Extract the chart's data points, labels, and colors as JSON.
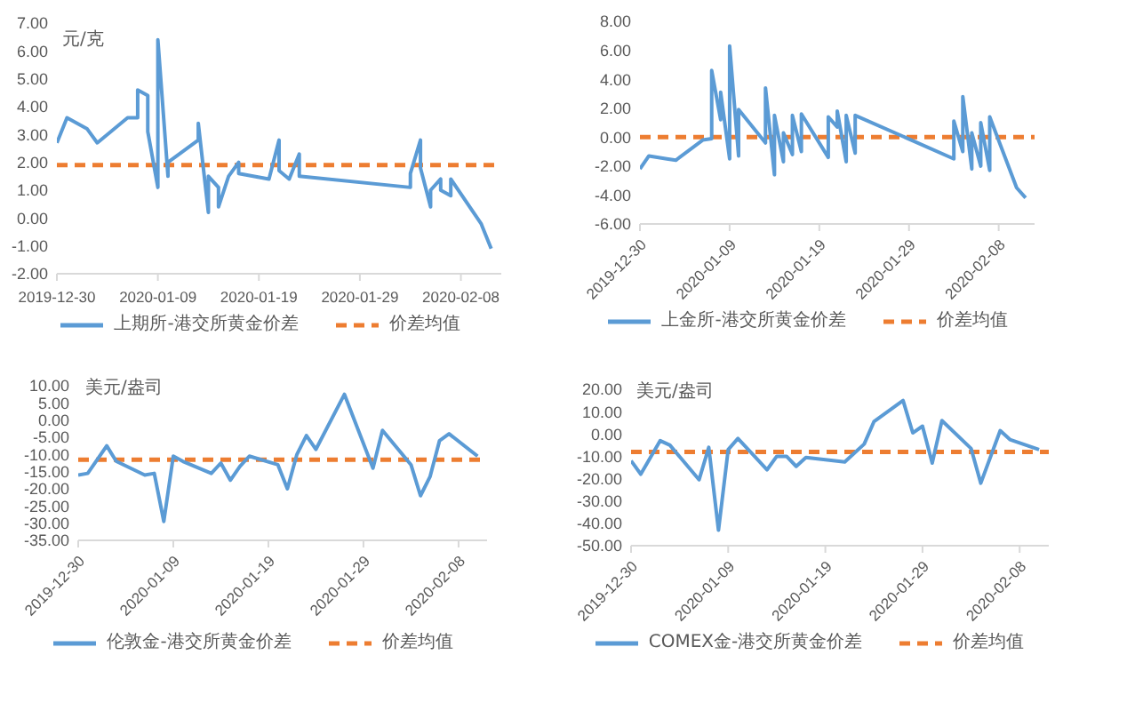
{
  "chart_data": [
    {
      "type": "line",
      "ylabel": "元/克",
      "xlim": [
        "2019-12-30",
        "2020-02-12"
      ],
      "xticks": [
        "2019-12-30",
        "2020-01-09",
        "2020-01-19",
        "2020-01-29",
        "2020-02-08"
      ],
      "ylim": [
        -2,
        7
      ],
      "yticks": [
        {
          "value": -2,
          "label": "-2.00"
        },
        {
          "value": -1,
          "label": "-1.00"
        },
        {
          "value": 0,
          "label": "0.00"
        },
        {
          "value": 1,
          "label": "1.00"
        },
        {
          "value": 2,
          "label": "2.00"
        },
        {
          "value": 3,
          "label": "3.00"
        },
        {
          "value": 4,
          "label": "4.00"
        },
        {
          "value": 5,
          "label": "5.00"
        },
        {
          "value": 6,
          "label": "6.00"
        },
        {
          "value": 7,
          "label": "7.00"
        }
      ],
      "legend": "bottom",
      "series": [
        {
          "name": "上期所-港交所黄金价差",
          "color": "#5b9bd5",
          "x": [
            "2019-12-30",
            "2019-12-31",
            "2020-01-02",
            "2020-01-03",
            "2020-01-06",
            "2020-01-07",
            "2020-01-07",
            "2020-01-08",
            "2020-01-08",
            "2020-01-09",
            "2020-01-09",
            "2020-01-10",
            "2020-01-10",
            "2020-01-13",
            "2020-01-13",
            "2020-01-14",
            "2020-01-14",
            "2020-01-15",
            "2020-01-15",
            "2020-01-16",
            "2020-01-17",
            "2020-01-17",
            "2020-01-20",
            "2020-01-21",
            "2020-01-21",
            "2020-01-22",
            "2020-01-23",
            "2020-01-23",
            "2020-02-03",
            "2020-02-03",
            "2020-02-04",
            "2020-02-04",
            "2020-02-05",
            "2020-02-05",
            "2020-02-06",
            "2020-02-06",
            "2020-02-07",
            "2020-02-07",
            "2020-02-10",
            "2020-02-11"
          ],
          "values": [
            2.7,
            3.6,
            3.2,
            2.7,
            3.6,
            3.6,
            4.6,
            4.4,
            3.1,
            1.1,
            6.4,
            1.5,
            2.0,
            2.8,
            3.4,
            0.2,
            1.5,
            1.1,
            0.4,
            1.5,
            2.0,
            1.6,
            1.4,
            2.8,
            1.7,
            1.4,
            2.3,
            1.5,
            1.1,
            1.6,
            2.8,
            1.8,
            0.4,
            1.0,
            1.4,
            1.0,
            0.8,
            1.4,
            -0.2,
            -1.1
          ]
        }
      ],
      "ref_lines": [
        {
          "axis": "y",
          "value": 1.9,
          "label": "价差均值",
          "color": "#ed7d31",
          "line_style": "dashed"
        }
      ]
    },
    {
      "type": "line",
      "xlim": [
        "2019-12-30",
        "2020-02-12"
      ],
      "xticks": [
        "2019-12-30",
        "2020-01-09",
        "2020-01-19",
        "2020-01-29",
        "2020-02-08"
      ],
      "ylim": [
        -6,
        8
      ],
      "yticks": [
        {
          "value": -6,
          "label": "-6.00"
        },
        {
          "value": -4,
          "label": "-4.00"
        },
        {
          "value": -2,
          "label": "-2.00"
        },
        {
          "value": 0,
          "label": "0.00"
        },
        {
          "value": 2,
          "label": "2.00"
        },
        {
          "value": 4,
          "label": "4.00"
        },
        {
          "value": 6,
          "label": "6.00"
        },
        {
          "value": 8,
          "label": "8.00"
        }
      ],
      "legend": "bottom",
      "series": [
        {
          "name": "上金所-港交所黄金价差",
          "color": "#5b9bd5",
          "x": [
            "2019-12-30",
            "2019-12-31",
            "2020-01-02",
            "2020-01-03",
            "2020-01-06",
            "2020-01-07",
            "2020-01-07",
            "2020-01-08",
            "2020-01-08",
            "2020-01-09",
            "2020-01-09",
            "2020-01-10",
            "2020-01-10",
            "2020-01-13",
            "2020-01-13",
            "2020-01-14",
            "2020-01-14",
            "2020-01-15",
            "2020-01-15",
            "2020-01-16",
            "2020-01-16",
            "2020-01-17",
            "2020-01-17",
            "2020-01-20",
            "2020-01-20",
            "2020-01-21",
            "2020-01-21",
            "2020-01-22",
            "2020-01-22",
            "2020-01-23",
            "2020-01-23",
            "2020-02-03",
            "2020-02-03",
            "2020-02-04",
            "2020-02-04",
            "2020-02-05",
            "2020-02-05",
            "2020-02-06",
            "2020-02-06",
            "2020-02-07",
            "2020-02-07",
            "2020-02-10",
            "2020-02-11"
          ],
          "values": [
            -2.2,
            -1.3,
            -1.5,
            -1.6,
            -0.2,
            -0.1,
            4.6,
            1.2,
            3.1,
            -1.5,
            6.3,
            -1.3,
            1.9,
            -0.4,
            3.4,
            -2.6,
            1.5,
            -1.7,
            0.3,
            -1.2,
            1.5,
            -1.0,
            1.6,
            -1.4,
            1.4,
            0.7,
            1.8,
            -1.7,
            1.5,
            -1.1,
            1.5,
            -1.5,
            1.1,
            -1.0,
            2.8,
            -2.2,
            0.3,
            -2.0,
            1.0,
            -2.3,
            1.4,
            -3.5,
            -4.2
          ]
        }
      ],
      "ref_lines": [
        {
          "axis": "y",
          "value": 0,
          "label": "价差均值",
          "color": "#ed7d31",
          "line_style": "dashed"
        }
      ]
    },
    {
      "type": "line",
      "ylabel": "美元/盎司",
      "xlim": [
        "2019-12-30",
        "2020-02-11"
      ],
      "xticks": [
        "2019-12-30",
        "2020-01-09",
        "2020-01-19",
        "2020-01-29",
        "2020-02-08"
      ],
      "ylim": [
        -35,
        10
      ],
      "yticks": [
        {
          "value": -35,
          "label": "-35.00"
        },
        {
          "value": -30,
          "label": "-30.00"
        },
        {
          "value": -25,
          "label": "-25.00"
        },
        {
          "value": -20,
          "label": "-20.00"
        },
        {
          "value": -15,
          "label": "-15.00"
        },
        {
          "value": -10,
          "label": "-10.00"
        },
        {
          "value": -5,
          "label": "-5.00"
        },
        {
          "value": 0,
          "label": "0.00"
        },
        {
          "value": 5,
          "label": "5.00"
        },
        {
          "value": 10,
          "label": "10.00"
        }
      ],
      "legend": "bottom",
      "series": [
        {
          "name": "伦敦金-港交所黄金价差",
          "color": "#5b9bd5",
          "x": [
            "2019-12-30",
            "2019-12-31",
            "2020-01-02",
            "2020-01-03",
            "2020-01-06",
            "2020-01-07",
            "2020-01-08",
            "2020-01-09",
            "2020-01-10",
            "2020-01-13",
            "2020-01-14",
            "2020-01-15",
            "2020-01-16",
            "2020-01-17",
            "2020-01-20",
            "2020-01-21",
            "2020-01-22",
            "2020-01-23",
            "2020-01-24",
            "2020-01-27",
            "2020-01-30",
            "2020-01-31",
            "2020-02-03",
            "2020-02-04",
            "2020-02-05",
            "2020-02-06",
            "2020-02-07",
            "2020-02-10"
          ],
          "values": [
            -16,
            -15.5,
            -7.5,
            -12,
            -16,
            -15.5,
            -29.5,
            -10.5,
            -12,
            -15.5,
            -12.5,
            -17.5,
            -13.5,
            -10.5,
            -13,
            -20,
            -10,
            -4.5,
            -8.5,
            7.5,
            -14,
            -3,
            -13,
            -22,
            -16.5,
            -6,
            -4,
            -10.5
          ]
        }
      ],
      "ref_lines": [
        {
          "axis": "y",
          "value": -11.5,
          "label": "价差均值",
          "color": "#ed7d31",
          "line_style": "dashed"
        }
      ]
    },
    {
      "type": "line",
      "ylabel": "美元/盎司",
      "xlim": [
        "2019-12-30",
        "2020-02-11"
      ],
      "xticks": [
        "2019-12-30",
        "2020-01-09",
        "2020-01-19",
        "2020-01-29",
        "2020-02-08"
      ],
      "ylim": [
        -50,
        20
      ],
      "yticks": [
        {
          "value": -50,
          "label": "-50.00"
        },
        {
          "value": -40,
          "label": "-40.00"
        },
        {
          "value": -30,
          "label": "-30.00"
        },
        {
          "value": -20,
          "label": "-20.00"
        },
        {
          "value": -10,
          "label": "-10.00"
        },
        {
          "value": 0,
          "label": "0.00"
        },
        {
          "value": 10,
          "label": "10.00"
        },
        {
          "value": 20,
          "label": "20.00"
        }
      ],
      "legend": "bottom",
      "series": [
        {
          "name": "COMEX金-港交所黄金价差",
          "color": "#5b9bd5",
          "x": [
            "2019-12-30",
            "2019-12-31",
            "2020-01-02",
            "2020-01-03",
            "2020-01-06",
            "2020-01-07",
            "2020-01-08",
            "2020-01-09",
            "2020-01-10",
            "2020-01-13",
            "2020-01-14",
            "2020-01-15",
            "2020-01-16",
            "2020-01-17",
            "2020-01-21",
            "2020-01-23",
            "2020-01-24",
            "2020-01-27",
            "2020-01-28",
            "2020-01-29",
            "2020-01-30",
            "2020-01-31",
            "2020-02-03",
            "2020-02-04",
            "2020-02-06",
            "2020-02-07",
            "2020-02-10"
          ],
          "values": [
            -12,
            -18,
            -3,
            -5,
            -20.5,
            -6,
            -43,
            -7,
            -2,
            -16,
            -10,
            -10,
            -14.5,
            -10.5,
            -12.5,
            -4.5,
            5.5,
            15,
            0.5,
            3.5,
            -13,
            6,
            -6.5,
            -22,
            1.5,
            -2.5,
            -7
          ]
        }
      ],
      "ref_lines": [
        {
          "axis": "y",
          "value": -8,
          "label": "价差均值",
          "color": "#ed7d31",
          "line_style": "dashed"
        }
      ]
    }
  ]
}
